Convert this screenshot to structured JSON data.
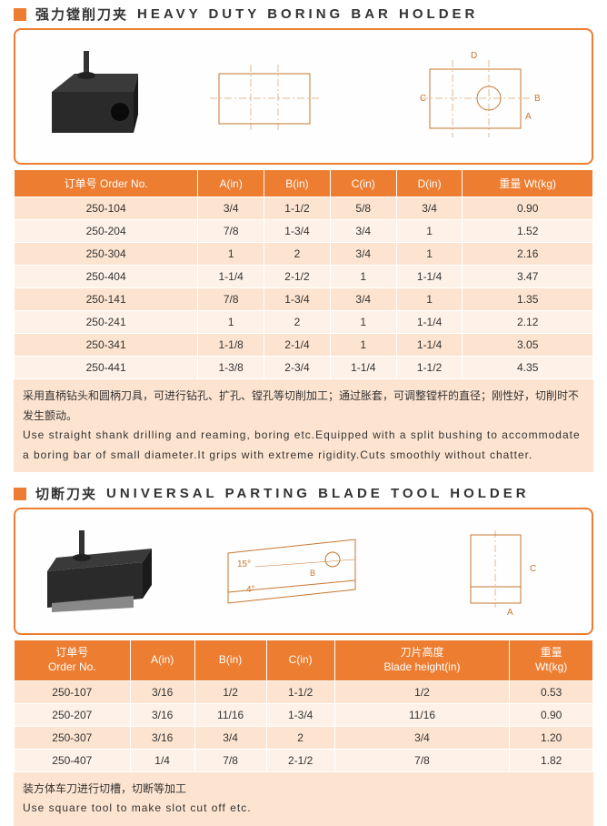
{
  "section1": {
    "title_cn": "强力镗削刀夹",
    "title_en": "HEAVY DUTY BORING BAR HOLDER",
    "headers": [
      "订单号 Order No.",
      "A(in)",
      "B(in)",
      "C(in)",
      "D(in)",
      "重量 Wt(kg)"
    ],
    "rows": [
      [
        "250-104",
        "3/4",
        "1-1/2",
        "5/8",
        "3/4",
        "0.90"
      ],
      [
        "250-204",
        "7/8",
        "1-3/4",
        "3/4",
        "1",
        "1.52"
      ],
      [
        "250-304",
        "1",
        "2",
        "3/4",
        "1",
        "2.16"
      ],
      [
        "250-404",
        "1-1/4",
        "2-1/2",
        "1",
        "1-1/4",
        "3.47"
      ],
      [
        "250-141",
        "7/8",
        "1-3/4",
        "3/4",
        "1",
        "1.35"
      ],
      [
        "250-241",
        "1",
        "2",
        "1",
        "1-1/4",
        "2.12"
      ],
      [
        "250-341",
        "1-1/8",
        "2-1/4",
        "1",
        "1-1/4",
        "3.05"
      ],
      [
        "250-441",
        "1-3/8",
        "2-3/4",
        "1-1/4",
        "1-1/2",
        "4.35"
      ]
    ],
    "desc_cn": "采用直柄钻头和圆柄刀具，可进行钻孔、扩孔、镗孔等切削加工；通过胀套，可调整镗杆的直径；刚性好，切削时不发生颤动。",
    "desc_en": "Use straight shank drilling and reaming, boring etc.Equipped with a split bushing to accommodate a boring bar of small diameter.It grips with extreme rigidity.Cuts smoothly without chatter."
  },
  "section2": {
    "title_cn": "切断刀夹",
    "title_en": "UNIVERSAL PARTING BLADE TOOL HOLDER",
    "headers_multi": [
      {
        "cn": "订单号",
        "en": "Order No."
      },
      {
        "single": "A(in)"
      },
      {
        "single": "B(in)"
      },
      {
        "single": "C(in)"
      },
      {
        "cn": "刀片高度",
        "en": "Blade height(in)"
      },
      {
        "cn": "重量",
        "en": "Wt(kg)"
      }
    ],
    "rows": [
      [
        "250-107",
        "3/16",
        "1/2",
        "1-1/2",
        "1/2",
        "0.53"
      ],
      [
        "250-207",
        "3/16",
        "11/16",
        "1-3/4",
        "11/16",
        "0.90"
      ],
      [
        "250-307",
        "3/16",
        "3/4",
        "2",
        "3/4",
        "1.20"
      ],
      [
        "250-407",
        "1/4",
        "7/8",
        "2-1/2",
        "7/8",
        "1.82"
      ]
    ],
    "desc_cn": "装方体车刀进行切槽，切断等加工",
    "desc_en": "Use square tool to make slot cut off etc."
  },
  "colors": {
    "accent": "#ed7d31",
    "row_odd": "#fde4d0",
    "row_even": "#fef2e8"
  },
  "drawing": {
    "angle1": "15°",
    "angle2": "4°",
    "labels": [
      "A",
      "B",
      "C",
      "D"
    ]
  }
}
